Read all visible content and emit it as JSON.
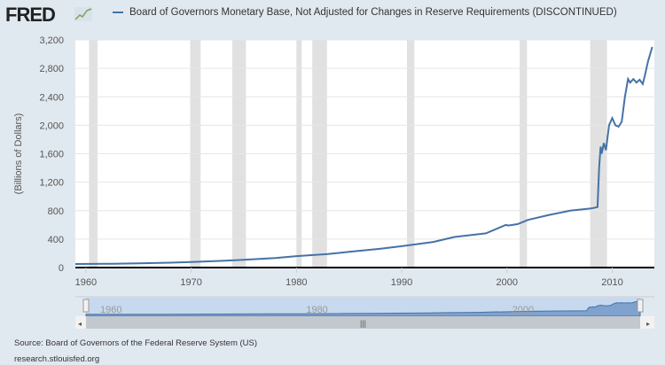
{
  "header": {
    "logo": "FRED",
    "legend": "Board of Governors Monetary Base, Not Adjusted for Changes in Reserve Requirements (DISCONTINUED)"
  },
  "footer": {
    "source": "Source: Board of Governors of the Federal Reserve System (US)",
    "url": "research.stlouisfed.org"
  },
  "colors": {
    "line": "#4572a7",
    "recession": "#e1e1e1",
    "background": "#e1e9f0",
    "navigator": "#c7d9ee"
  },
  "chart_data": {
    "type": "line",
    "title": "",
    "ylabel": "(Billions of Dollars)",
    "xlabel": "",
    "xlim": [
      1959,
      2014
    ],
    "ylim": [
      0,
      3200
    ],
    "grid": true,
    "yticks": [
      0,
      400,
      800,
      1200,
      1600,
      2000,
      2400,
      2800,
      3200
    ],
    "ytick_labels": [
      "0",
      "400",
      "800",
      "1,200",
      "1,600",
      "2,000",
      "2,400",
      "2,800",
      "3,200"
    ],
    "xticks": [
      1960,
      1970,
      1980,
      1990,
      2000,
      2010
    ],
    "navigator_labels": [
      "1960",
      "1980",
      "2000"
    ],
    "recessions": [
      [
        1960.3,
        1961.1
      ],
      [
        1969.9,
        1970.9
      ],
      [
        1973.9,
        1975.2
      ],
      [
        1980.0,
        1980.5
      ],
      [
        1981.5,
        1982.9
      ],
      [
        1990.5,
        1991.2
      ],
      [
        2001.2,
        2001.9
      ],
      [
        2007.9,
        2009.5
      ]
    ],
    "series": [
      {
        "x": [
          1959,
          1962,
          1965,
          1968,
          1970,
          1973,
          1975,
          1978,
          1980,
          1983,
          1985,
          1988,
          1990,
          1993,
          1995,
          1998,
          1999.9,
          2000.1,
          2001,
          2002,
          2004,
          2006,
          2008.0,
          2008.6,
          2008.75,
          2008.9,
          2009.0,
          2009.2,
          2009.4,
          2009.7,
          2010.0,
          2010.3,
          2010.6,
          2010.9,
          2011.2,
          2011.5,
          2011.7,
          2012.0,
          2012.3,
          2012.6,
          2012.9,
          2013.1,
          2013.4,
          2013.8
        ],
        "y": [
          50,
          52,
          58,
          68,
          78,
          95,
          110,
          135,
          160,
          190,
          220,
          265,
          300,
          360,
          430,
          480,
          600,
          590,
          610,
          670,
          740,
          800,
          830,
          850,
          1400,
          1700,
          1600,
          1750,
          1650,
          2000,
          2100,
          2000,
          1980,
          2050,
          2400,
          2650,
          2600,
          2650,
          2600,
          2640,
          2580,
          2700,
          2900,
          3100
        ]
      }
    ]
  }
}
